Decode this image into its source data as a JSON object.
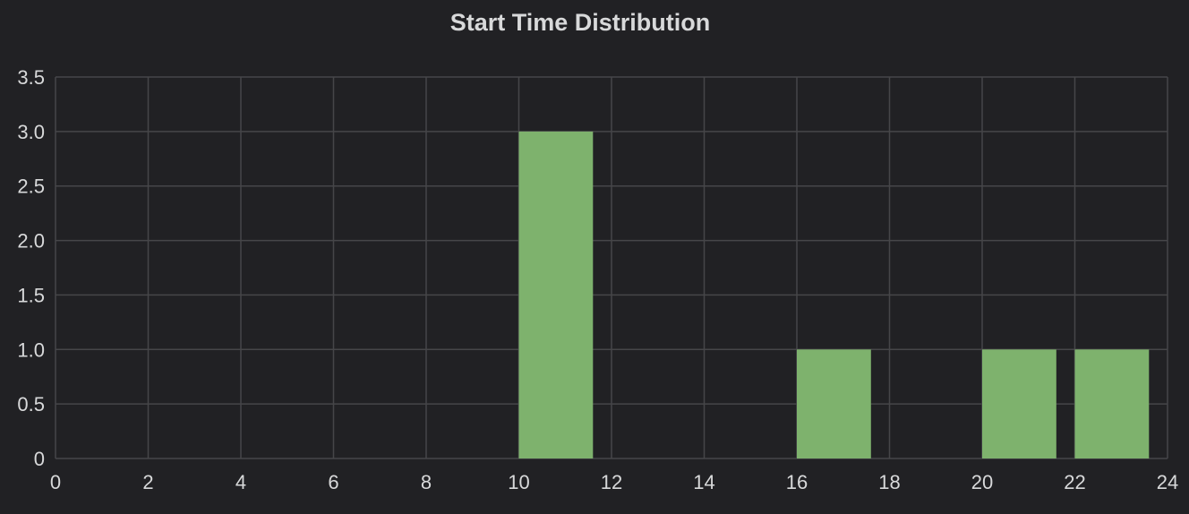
{
  "panel": {
    "title": "Start Time Distribution"
  },
  "colors": {
    "background": "#212124",
    "grid": "#464649",
    "text": "#d8d9da",
    "bar": "#7eb26d"
  },
  "chart_data": {
    "type": "bar",
    "title": "Start Time Distribution",
    "xlabel": "",
    "ylabel": "",
    "grid": true,
    "xlim": [
      0,
      24
    ],
    "ylim": [
      0,
      3.5
    ],
    "x_ticks": [
      "0",
      "2",
      "4",
      "6",
      "8",
      "10",
      "12",
      "14",
      "16",
      "18",
      "20",
      "22",
      "24"
    ],
    "y_ticks": [
      "0",
      "0.5",
      "1.0",
      "1.5",
      "2.0",
      "2.5",
      "3.0",
      "3.5"
    ],
    "bins": [
      {
        "start": 10,
        "end": 11.6,
        "value": 3
      },
      {
        "start": 16,
        "end": 17.6,
        "value": 1
      },
      {
        "start": 20,
        "end": 21.6,
        "value": 1
      },
      {
        "start": 22,
        "end": 23.6,
        "value": 1
      }
    ]
  }
}
